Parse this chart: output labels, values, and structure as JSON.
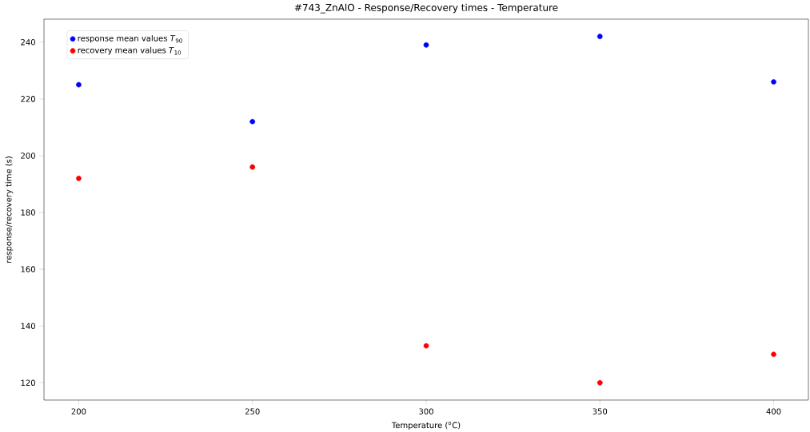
{
  "chart_data": {
    "type": "scatter",
    "title": "#743_ZnAlO - Response/Recovery times - Temperature",
    "xlabel": "Temperature ($^{o}$C)",
    "ylabel": "response/recovery time (s)",
    "x": [
      200,
      250,
      300,
      350,
      400
    ],
    "series": [
      {
        "name": "response mean values *T*$_{90}$",
        "color": "#0000ff",
        "values": [
          225,
          212,
          239,
          242,
          226
        ]
      },
      {
        "name": "recovery mean values *T*$_{10}$",
        "color": "#ff0000",
        "values": [
          192,
          196,
          133,
          120,
          130
        ]
      }
    ],
    "xlim": [
      190,
      410
    ],
    "ylim": [
      113.9,
      248.1
    ],
    "xticks": [
      200,
      250,
      300,
      350,
      400
    ],
    "yticks": [
      120,
      140,
      160,
      180,
      200,
      220,
      240
    ],
    "legend": "top left",
    "marker": "circle"
  }
}
